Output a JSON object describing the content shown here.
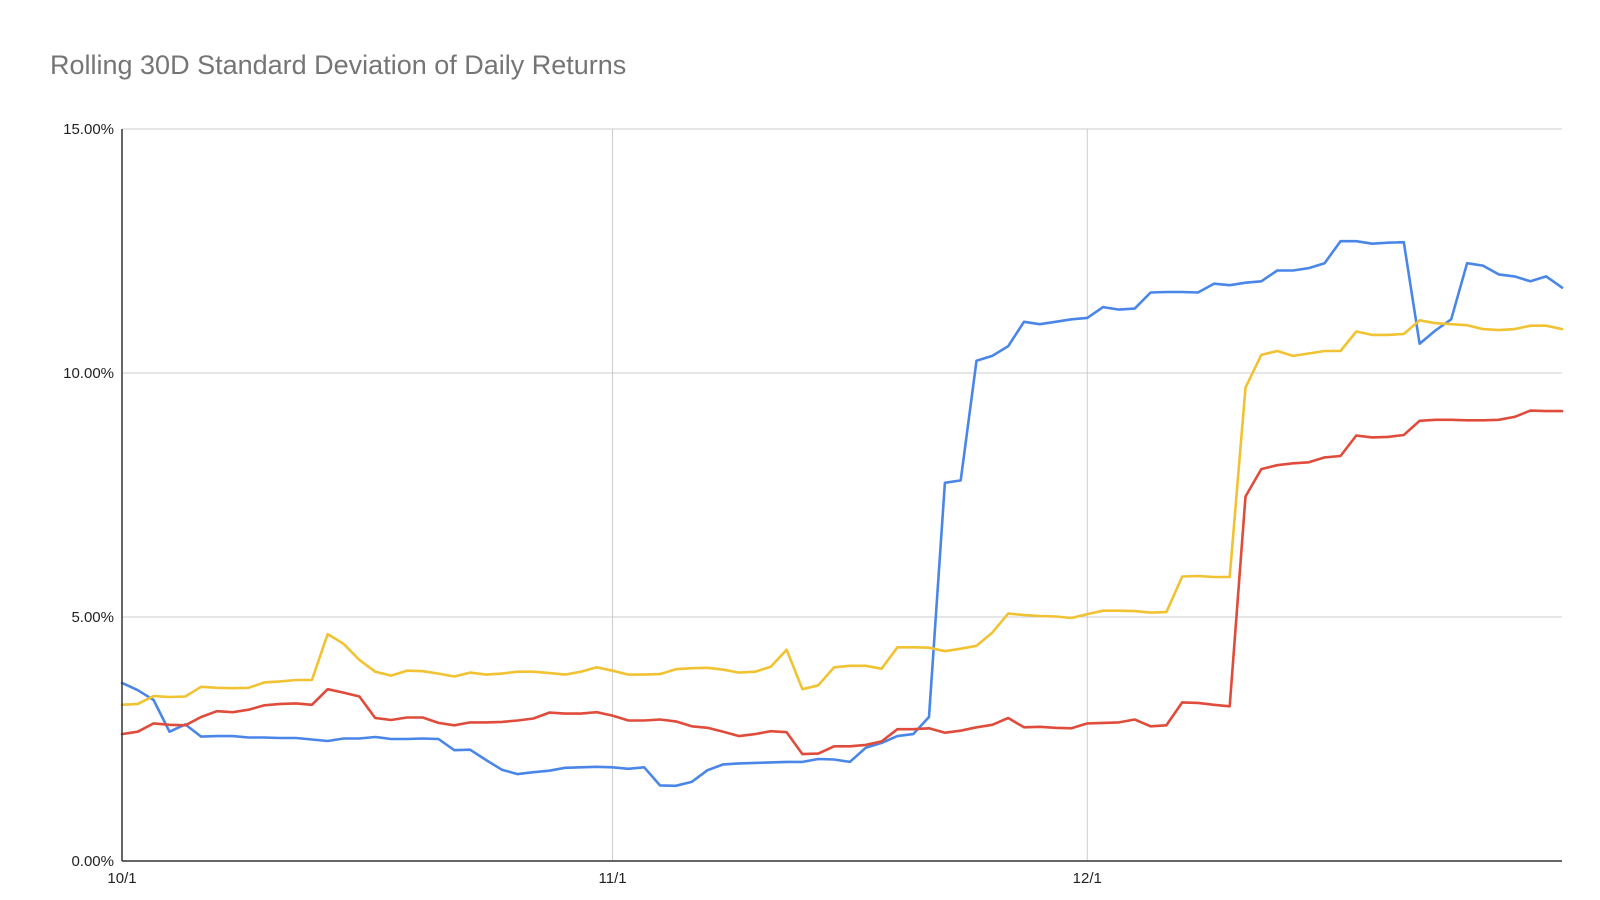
{
  "chart_data": {
    "type": "line",
    "title": "Rolling 30D Standard Deviation of Daily Returns",
    "xlabel": "",
    "ylabel": "",
    "x_start": "10/1",
    "x_ticks": [
      {
        "label": "10/1",
        "day": 0
      },
      {
        "label": "11/1",
        "day": 31
      },
      {
        "label": "12/1",
        "day": 61
      }
    ],
    "y_ticks": [
      "0.00%",
      "5.00%",
      "10.00%",
      "15.00%"
    ],
    "y_tick_values": [
      0,
      5,
      10,
      15
    ],
    "ylim": [
      0,
      15
    ],
    "xlim_days": [
      0,
      91
    ],
    "grid": true,
    "legend": "none",
    "series": [
      {
        "color": "#4a86e8",
        "values": [
          3.65,
          3.5,
          3.3,
          2.65,
          2.8,
          2.55,
          2.56,
          2.56,
          2.53,
          2.53,
          2.52,
          2.52,
          2.49,
          2.46,
          2.51,
          2.51,
          2.54,
          2.5,
          2.5,
          2.51,
          2.5,
          2.27,
          2.28,
          2.07,
          1.87,
          1.78,
          1.82,
          1.85,
          1.91,
          1.92,
          1.93,
          1.92,
          1.89,
          1.92,
          1.55,
          1.54,
          1.62,
          1.86,
          1.98,
          2,
          2.01,
          2.02,
          2.03,
          2.03,
          2.09,
          2.08,
          2.03,
          2.32,
          2.42,
          2.56,
          2.6,
          2.95,
          7.75,
          7.8,
          10.25,
          10.35,
          10.55,
          11.05,
          11,
          11.05,
          11.1,
          11.13,
          11.35,
          11.3,
          11.32,
          11.65,
          11.66,
          11.66,
          11.65,
          11.83,
          11.8,
          11.85,
          11.88,
          12.1,
          12.1,
          12.15,
          12.25,
          12.7,
          12.7,
          12.65,
          12.67,
          12.68,
          10.6,
          10.87,
          11.1,
          12.25,
          12.2,
          12.02,
          11.98,
          11.88,
          11.98,
          11.75
        ]
      },
      {
        "color": "#e04c3b",
        "values": [
          2.6,
          2.65,
          2.82,
          2.79,
          2.78,
          2.95,
          3.07,
          3.05,
          3.1,
          3.19,
          3.22,
          3.23,
          3.2,
          3.52,
          3.45,
          3.37,
          2.93,
          2.89,
          2.94,
          2.94,
          2.83,
          2.78,
          2.84,
          2.84,
          2.85,
          2.88,
          2.92,
          3.04,
          3.02,
          3.02,
          3.05,
          2.98,
          2.88,
          2.88,
          2.9,
          2.86,
          2.76,
          2.73,
          2.65,
          2.56,
          2.6,
          2.66,
          2.64,
          2.19,
          2.2,
          2.35,
          2.35,
          2.38,
          2.45,
          2.7,
          2.7,
          2.72,
          2.63,
          2.67,
          2.74,
          2.79,
          2.93,
          2.74,
          2.75,
          2.73,
          2.72,
          2.82,
          2.83,
          2.84,
          2.9,
          2.76,
          2.78,
          3.25,
          3.24,
          3.2,
          3.17,
          7.47,
          8.03,
          8.11,
          8.15,
          8.17,
          8.27,
          8.3,
          8.72,
          8.68,
          8.69,
          8.73,
          9.02,
          9.04,
          9.04,
          9.03,
          9.03,
          9.04,
          9.1,
          9.23,
          9.22,
          9.22
        ]
      },
      {
        "color": "#f1c232",
        "values": [
          3.2,
          3.22,
          3.38,
          3.36,
          3.37,
          3.57,
          3.55,
          3.54,
          3.55,
          3.66,
          3.68,
          3.71,
          3.71,
          4.65,
          4.45,
          4.12,
          3.88,
          3.8,
          3.9,
          3.89,
          3.84,
          3.78,
          3.86,
          3.82,
          3.84,
          3.88,
          3.88,
          3.85,
          3.82,
          3.88,
          3.97,
          3.9,
          3.82,
          3.82,
          3.83,
          3.93,
          3.95,
          3.96,
          3.92,
          3.86,
          3.88,
          3.98,
          4.33,
          3.52,
          3.6,
          3.97,
          4.0,
          4.0,
          3.94,
          4.38,
          4.38,
          4.37,
          4.3,
          4.35,
          4.41,
          4.68,
          5.07,
          5.04,
          5.02,
          5.01,
          4.98,
          5.06,
          5.13,
          5.13,
          5.12,
          5.09,
          5.1,
          5.83,
          5.84,
          5.82,
          5.82,
          9.7,
          10.37,
          10.45,
          10.35,
          10.4,
          10.45,
          10.45,
          10.85,
          10.78,
          10.78,
          10.8,
          11.08,
          11.02,
          11.0,
          10.98,
          10.9,
          10.88,
          10.9,
          10.97,
          10.97,
          10.9
        ]
      }
    ]
  }
}
